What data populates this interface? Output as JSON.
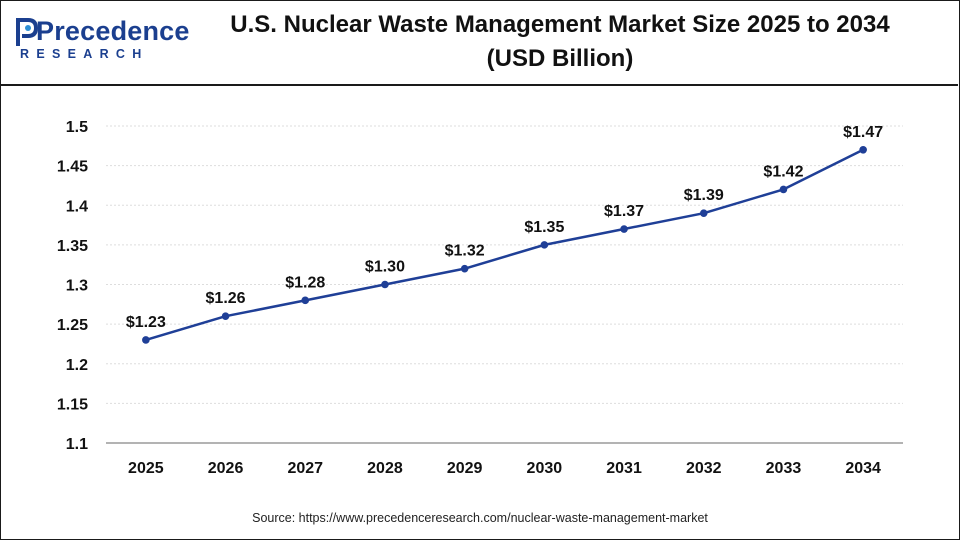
{
  "brand": {
    "logo_text_precedence": "Precedence",
    "logo_text_research": "RESEARCH"
  },
  "title_line1": "U.S. Nuclear Waste Management Market Size 2025 to 2034",
  "title_line2": "(USD Billion)",
  "source": "Source: https://www.precedenceresearch.com/nuclear-waste-management-market",
  "colors": {
    "line": "#1f3f97",
    "grid": "#dddddd",
    "axis": "#9a9a9a",
    "brand": "#1b3f8f"
  },
  "chart_data": {
    "type": "line",
    "title": "U.S. Nuclear Waste Management Market Size 2025 to 2034 (USD Billion)",
    "xlabel": "",
    "ylabel": "",
    "categories": [
      "2025",
      "2026",
      "2027",
      "2028",
      "2029",
      "2030",
      "2031",
      "2032",
      "2033",
      "2034"
    ],
    "series": [
      {
        "name": "U.S. Nuclear Waste Management Market",
        "values": [
          1.23,
          1.26,
          1.28,
          1.3,
          1.32,
          1.35,
          1.37,
          1.39,
          1.42,
          1.47
        ],
        "labels": [
          "$1.23",
          "$1.26",
          "$1.28",
          "$1.30",
          "$1.32",
          "$1.35",
          "$1.37",
          "$1.39",
          "$1.42",
          "$1.47"
        ]
      }
    ],
    "ylim": [
      1.1,
      1.5
    ],
    "yticks": [
      1.1,
      1.15,
      1.2,
      1.25,
      1.3,
      1.35,
      1.4,
      1.45,
      1.5
    ],
    "ytick_labels": [
      "1.1",
      "1.15",
      "1.2",
      "1.25",
      "1.3",
      "1.35",
      "1.4",
      "1.45",
      "1.5"
    ],
    "grid": true,
    "legend": "none"
  }
}
